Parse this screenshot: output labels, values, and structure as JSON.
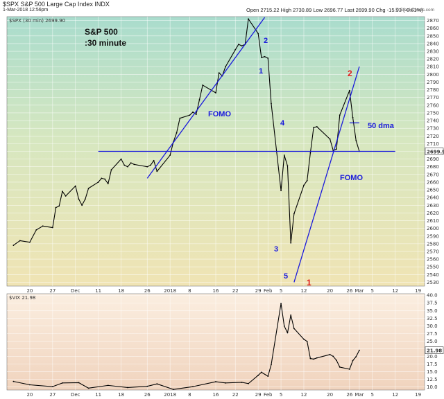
{
  "header": {
    "symbol_line": "$SPX S&P 500 Large Cap Index INDX",
    "timestamp": "1-Mar-2018 12:56pm",
    "ohlc": "Open 2715.22  High 2730.89  Low 2696.77  Last 2699.90  Chg -15.93 (-0.61%)",
    "credit": "© StockCharts.com",
    "spx_legend": "$SPX (30 min) 2699.90",
    "vix_legend": "$VIX 21.98"
  },
  "chart_data": [
    {
      "type": "line",
      "title": "S&P 500\n:30 minute",
      "ylim": [
        2525,
        2875
      ],
      "yticks": [
        2530,
        2540,
        2550,
        2560,
        2570,
        2580,
        2590,
        2600,
        2610,
        2620,
        2630,
        2640,
        2650,
        2660,
        2670,
        2680,
        2690,
        2700,
        2710,
        2720,
        2730,
        2740,
        2750,
        2760,
        2770,
        2780,
        2790,
        2800,
        2810,
        2820,
        2830,
        2840,
        2850,
        2860,
        2870
      ],
      "last_value_label": "2699.90",
      "x_tick_labels": [
        "20",
        "27",
        "Dec",
        "11",
        "18",
        "26",
        "2018",
        "8",
        "16",
        "22",
        "29",
        "Feb",
        "5",
        "12",
        "20",
        "26",
        "Mar",
        "5",
        "12",
        "19"
      ],
      "grid": true,
      "series": [
        {
          "values": [
            {
              "x": "2017-11-15",
              "y": 2578
            },
            {
              "x": "2017-11-17",
              "y": 2584
            },
            {
              "x": "2017-11-20",
              "y": 2582
            },
            {
              "x": "2017-11-22",
              "y": 2598
            },
            {
              "x": "2017-11-24",
              "y": 2603
            },
            {
              "x": "2017-11-27",
              "y": 2601
            },
            {
              "x": "2017-11-28",
              "y": 2627
            },
            {
              "x": "2017-11-29",
              "y": 2629
            },
            {
              "x": "2017-11-30",
              "y": 2648
            },
            {
              "x": "2017-12-01",
              "y": 2642
            },
            {
              "x": "2017-12-04",
              "y": 2655
            },
            {
              "x": "2017-12-05",
              "y": 2638
            },
            {
              "x": "2017-12-06",
              "y": 2630
            },
            {
              "x": "2017-12-07",
              "y": 2638
            },
            {
              "x": "2017-12-08",
              "y": 2652
            },
            {
              "x": "2017-12-11",
              "y": 2660
            },
            {
              "x": "2017-12-12",
              "y": 2665
            },
            {
              "x": "2017-12-13",
              "y": 2664
            },
            {
              "x": "2017-12-14",
              "y": 2658
            },
            {
              "x": "2017-12-15",
              "y": 2676
            },
            {
              "x": "2017-12-18",
              "y": 2690
            },
            {
              "x": "2017-12-19",
              "y": 2682
            },
            {
              "x": "2017-12-20",
              "y": 2680
            },
            {
              "x": "2017-12-21",
              "y": 2685
            },
            {
              "x": "2017-12-22",
              "y": 2683
            },
            {
              "x": "2017-12-26",
              "y": 2680
            },
            {
              "x": "2017-12-27",
              "y": 2682
            },
            {
              "x": "2017-12-28",
              "y": 2688
            },
            {
              "x": "2017-12-29",
              "y": 2674
            },
            {
              "x": "2018-01-02",
              "y": 2695
            },
            {
              "x": "2018-01-03",
              "y": 2712
            },
            {
              "x": "2018-01-04",
              "y": 2724
            },
            {
              "x": "2018-01-05",
              "y": 2743
            },
            {
              "x": "2018-01-08",
              "y": 2747
            },
            {
              "x": "2018-01-09",
              "y": 2751
            },
            {
              "x": "2018-01-10",
              "y": 2748
            },
            {
              "x": "2018-01-11",
              "y": 2767
            },
            {
              "x": "2018-01-12",
              "y": 2786
            },
            {
              "x": "2018-01-16",
              "y": 2776
            },
            {
              "x": "2018-01-17",
              "y": 2802
            },
            {
              "x": "2018-01-18",
              "y": 2798
            },
            {
              "x": "2018-01-19",
              "y": 2810
            },
            {
              "x": "2018-01-22",
              "y": 2832
            },
            {
              "x": "2018-01-23",
              "y": 2839
            },
            {
              "x": "2018-01-24",
              "y": 2837
            },
            {
              "x": "2018-01-25",
              "y": 2839
            },
            {
              "x": "2018-01-26",
              "y": 2872
            },
            {
              "x": "2018-01-29",
              "y": 2853
            },
            {
              "x": "2018-01-30",
              "y": 2822
            },
            {
              "x": "2018-01-31",
              "y": 2823
            },
            {
              "x": "2018-02-01",
              "y": 2821
            },
            {
              "x": "2018-02-02",
              "y": 2762
            },
            {
              "x": "2018-02-05",
              "y": 2649
            },
            {
              "x": "2018-02-06",
              "y": 2695
            },
            {
              "x": "2018-02-07",
              "y": 2681
            },
            {
              "x": "2018-02-08",
              "y": 2581
            },
            {
              "x": "2018-02-09",
              "y": 2619
            },
            {
              "x": "2018-02-12",
              "y": 2656
            },
            {
              "x": "2018-02-13",
              "y": 2662
            },
            {
              "x": "2018-02-14",
              "y": 2698
            },
            {
              "x": "2018-02-15",
              "y": 2731
            },
            {
              "x": "2018-02-16",
              "y": 2732
            },
            {
              "x": "2018-02-20",
              "y": 2716
            },
            {
              "x": "2018-02-21",
              "y": 2701
            },
            {
              "x": "2018-02-22",
              "y": 2703
            },
            {
              "x": "2018-02-23",
              "y": 2747
            },
            {
              "x": "2018-02-26",
              "y": 2779
            },
            {
              "x": "2018-02-27",
              "y": 2744
            },
            {
              "x": "2018-02-28",
              "y": 2714
            },
            {
              "x": "2018-03-01",
              "y": 2700
            }
          ]
        }
      ],
      "annotations": {
        "fomo_label_1": "FOMO",
        "fomo_label_2": "FOMO",
        "dma_label": "50 dma",
        "wave_1": "1",
        "wave_2": "2",
        "wave_3": "3",
        "wave_4": "4",
        "wave_5": "5",
        "count_1": "1",
        "count_2": "2"
      },
      "colors": {
        "price": "#000000",
        "annotation": "#1a1adc",
        "count": "#e01b1b"
      }
    },
    {
      "type": "line",
      "ylim": [
        9,
        40.5
      ],
      "yticks": [
        10.0,
        12.5,
        15.0,
        17.5,
        20.0,
        22.5,
        25.0,
        27.5,
        30.0,
        32.5,
        35.0,
        37.5,
        40.0
      ],
      "last_value_label": "21.98",
      "x_tick_labels": [
        "20",
        "27",
        "Dec",
        "11",
        "18",
        "26",
        "2018",
        "8",
        "16",
        "22",
        "29",
        "Feb",
        "5",
        "12",
        "20",
        "26",
        "Mar",
        "5",
        "12",
        "19"
      ],
      "grid": true,
      "series": [
        {
          "values": [
            {
              "x": "2017-11-15",
              "y": 11.8
            },
            {
              "x": "2017-11-20",
              "y": 10.7
            },
            {
              "x": "2017-11-27",
              "y": 10.1
            },
            {
              "x": "2017-11-30",
              "y": 11.3
            },
            {
              "x": "2017-12-05",
              "y": 11.4
            },
            {
              "x": "2017-12-08",
              "y": 9.6
            },
            {
              "x": "2017-12-14",
              "y": 10.5
            },
            {
              "x": "2017-12-20",
              "y": 9.8
            },
            {
              "x": "2017-12-26",
              "y": 10.2
            },
            {
              "x": "2017-12-29",
              "y": 11.0
            },
            {
              "x": "2018-01-03",
              "y": 9.2
            },
            {
              "x": "2018-01-09",
              "y": 10.1
            },
            {
              "x": "2018-01-16",
              "y": 11.7
            },
            {
              "x": "2018-01-19",
              "y": 11.3
            },
            {
              "x": "2018-01-24",
              "y": 11.5
            },
            {
              "x": "2018-01-26",
              "y": 11.1
            },
            {
              "x": "2018-01-29",
              "y": 13.8
            },
            {
              "x": "2018-01-30",
              "y": 14.8
            },
            {
              "x": "2018-02-01",
              "y": 13.5
            },
            {
              "x": "2018-02-02",
              "y": 17.3
            },
            {
              "x": "2018-02-05",
              "y": 37.3
            },
            {
              "x": "2018-02-06",
              "y": 29.9
            },
            {
              "x": "2018-02-07",
              "y": 27.7
            },
            {
              "x": "2018-02-08",
              "y": 33.5
            },
            {
              "x": "2018-02-09",
              "y": 29.1
            },
            {
              "x": "2018-02-12",
              "y": 25.6
            },
            {
              "x": "2018-02-13",
              "y": 24.9
            },
            {
              "x": "2018-02-14",
              "y": 19.3
            },
            {
              "x": "2018-02-15",
              "y": 19.1
            },
            {
              "x": "2018-02-16",
              "y": 19.5
            },
            {
              "x": "2018-02-20",
              "y": 20.6
            },
            {
              "x": "2018-02-21",
              "y": 20.0
            },
            {
              "x": "2018-02-22",
              "y": 18.7
            },
            {
              "x": "2018-02-23",
              "y": 16.5
            },
            {
              "x": "2018-02-26",
              "y": 15.8
            },
            {
              "x": "2018-02-27",
              "y": 18.6
            },
            {
              "x": "2018-02-28",
              "y": 19.9
            },
            {
              "x": "2018-03-01",
              "y": 22.0
            }
          ]
        }
      ]
    }
  ]
}
